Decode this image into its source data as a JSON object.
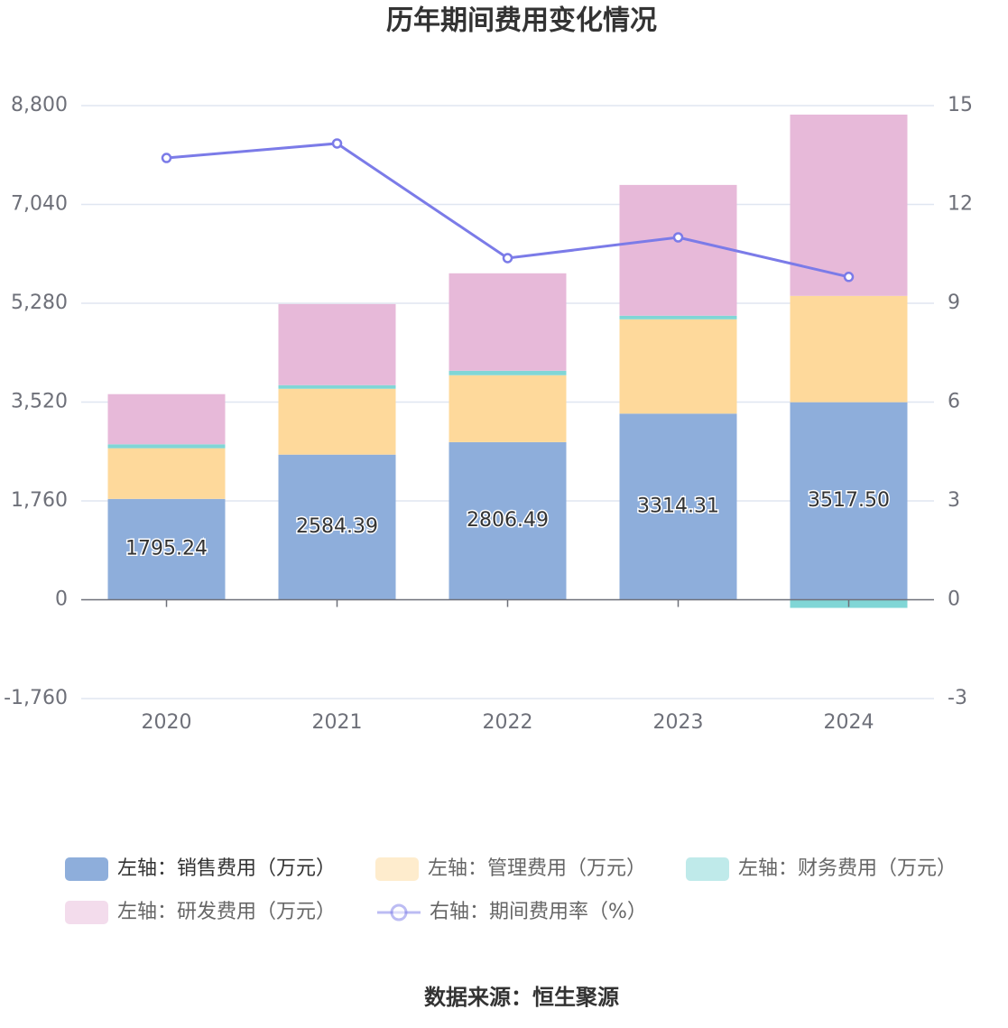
{
  "chart_data": {
    "type": "bar",
    "title": "历年期间费用变化情况",
    "categories": [
      "2020",
      "2021",
      "2022",
      "2023",
      "2024"
    ],
    "series": [
      {
        "name": "左轴：销售费用（万元）",
        "color": "#8eaedb",
        "values": [
          1795.24,
          2584.39,
          2806.49,
          3314.31,
          3517.5
        ],
        "value_labels": [
          "1795.24",
          "2584.39",
          "2806.49",
          "3314.31",
          "3517.50"
        ]
      },
      {
        "name": "左轴：管理费用（万元）",
        "color": "#fed99b",
        "values": [
          903,
          1173,
          1192,
          1680,
          1894
        ]
      },
      {
        "name": "左轴：财务费用（万元）",
        "color": "#80d6d6",
        "values": [
          70,
          64,
          80,
          64,
          -145
        ]
      },
      {
        "name": "左轴：研发费用（万元）",
        "color": "#e7b9d9",
        "values": [
          893,
          1445,
          1735,
          2329,
          3228
        ]
      },
      {
        "name": "右轴：期间费用率（%）",
        "color": "#7b7be8",
        "type": "line",
        "axis": "y2",
        "values": [
          13.41,
          13.85,
          10.37,
          11.0,
          9.8
        ]
      }
    ],
    "ylim": [
      -1760,
      8800
    ],
    "yticks": [
      {
        "value": -1760,
        "label": "-1,760"
      },
      0,
      {
        "value": 1760,
        "label": "1,760"
      },
      {
        "value": 3520,
        "label": "3,520"
      },
      {
        "value": 5280,
        "label": "5,280"
      },
      {
        "value": 7040,
        "label": "7,040"
      },
      {
        "value": 8800,
        "label": "8,800"
      }
    ],
    "y2lim": [
      -3,
      15
    ],
    "y2ticks": [
      -3,
      0,
      3,
      6,
      9,
      12,
      15
    ],
    "grid": true,
    "stacked": true,
    "legend": "bottom",
    "source": "数据来源：恒生聚源"
  }
}
